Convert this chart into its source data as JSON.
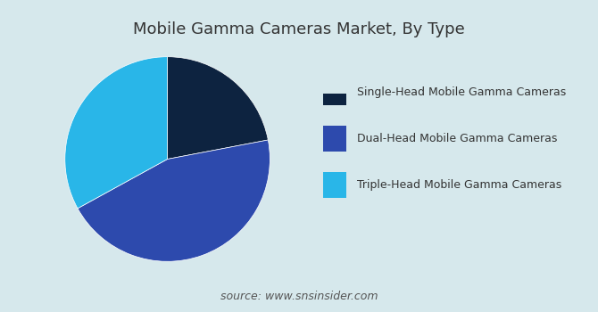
{
  "title": "Mobile Gamma Cameras Market, By Type",
  "labels": [
    "Single-Head Mobile Gamma Cameras",
    "Dual-Head Mobile Gamma Cameras",
    "Triple-Head Mobile Gamma Cameras"
  ],
  "sizes": [
    22,
    45,
    33
  ],
  "colors": [
    "#0d2340",
    "#2d4aad",
    "#29b6e8"
  ],
  "background_color": "#d6e8ec",
  "source_text": "source: www.snsinsider.com",
  "startangle": 90,
  "title_fontsize": 13,
  "legend_fontsize": 9,
  "source_fontsize": 9
}
